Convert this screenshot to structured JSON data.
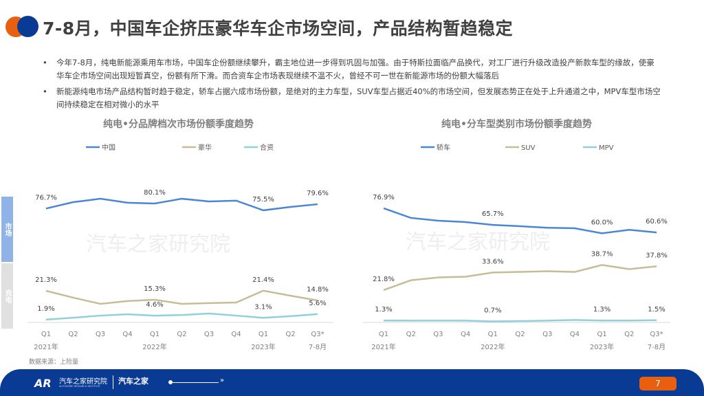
{
  "title": "7-8月，中国车企挤压豪华车企市场空间，产品结构暂趋稳定",
  "bullets": [
    "今年7-8月，纯电新能源乘用车市场，中国车企份额继续攀升，霸主地位进一步得到巩固与加强。由于特斯拉面临产品换代，对工厂进行升级改造投产新款车型的缘故，使豪华车企市场空间出现短暂真空，份额有所下滑。而合资车企市场表现继续不温不火，曾经不可一世在新能源市场的份额大幅落后",
    "新能源纯电市场产品结构暂时趋于稳定，轿车占据六成市场份额，是绝对的主力车型，SUV车型占据近40%的市场空间，但发展态势正在处于上升通道之中，MPV车型市场空间持续稳定在相对微小的水平"
  ],
  "side_bands": [
    "市场",
    "充电"
  ],
  "watermark": "汽车之家研究院",
  "source": "数据来源：上险量",
  "footer": {
    "brand": "汽车之家研究院",
    "brand_sub": "AUTOHOME RESEARCH INSTITUTE",
    "brand2": "汽车之家",
    "page": "7"
  },
  "colors": {
    "accent_orange": "#e8600f",
    "accent_blue": "#0a3b94"
  },
  "chart_data": [
    {
      "type": "line",
      "title": "纯电•分品牌档次市场份额季度趋势",
      "categories": [
        "Q1",
        "Q2",
        "Q3",
        "Q4",
        "Q1",
        "Q2",
        "Q3",
        "Q4",
        "Q1",
        "Q2",
        "Q3*"
      ],
      "year_labels": [
        "2021年",
        "",
        "",
        "",
        "2022年",
        "",
        "",
        "",
        "2023年",
        "",
        "7-8月"
      ],
      "legend": "top",
      "ylim": [
        0,
        100
      ],
      "series": [
        {
          "name": "中国",
          "color": "#4a86d8",
          "values": [
            76.7,
            81.0,
            83.3,
            80.6,
            80.1,
            83.3,
            81.5,
            82.0,
            75.5,
            77.8,
            79.6
          ],
          "labels": {
            "0": "76.7%",
            "4": "80.1%",
            "8": "75.5%",
            "10": "79.6%"
          }
        },
        {
          "name": "豪华",
          "color": "#c8bc98",
          "values": [
            21.3,
            16.7,
            12.5,
            14.4,
            15.3,
            12.5,
            13.0,
            13.4,
            21.4,
            18.0,
            14.8
          ],
          "labels": {
            "0": "21.3%",
            "4": "15.3%",
            "8": "21.4%",
            "10": "14.8%"
          }
        },
        {
          "name": "合资",
          "color": "#8fd0dc",
          "values": [
            1.9,
            3.2,
            4.6,
            5.5,
            4.6,
            5.0,
            6.0,
            4.6,
            3.1,
            4.2,
            5.6
          ],
          "labels": {
            "0": "1.9%",
            "4": "4.6%",
            "8": "3.1%",
            "10": "5.6%"
          }
        }
      ]
    },
    {
      "type": "line",
      "title": "纯电•分车型类别市场份额季度趋势",
      "categories": [
        "Q1",
        "Q2",
        "Q3",
        "Q4",
        "Q1",
        "Q2",
        "Q3",
        "Q4",
        "Q1",
        "Q2",
        "Q3*"
      ],
      "year_labels": [
        "2021年",
        "",
        "",
        "",
        "2022年",
        "",
        "",
        "",
        "2023年",
        "",
        "7-8月"
      ],
      "legend": "top",
      "ylim": [
        0,
        100
      ],
      "series": [
        {
          "name": "轿车",
          "color": "#4a86d8",
          "values": [
            76.9,
            70.4,
            68.5,
            67.6,
            65.7,
            64.8,
            63.8,
            63.4,
            60.0,
            62.4,
            60.6
          ],
          "labels": {
            "0": "76.9%",
            "4": "65.7%",
            "8": "60.0%",
            "10": "60.6%"
          }
        },
        {
          "name": "SUV",
          "color": "#c8bc98",
          "values": [
            21.8,
            28.4,
            30.3,
            30.8,
            33.6,
            34.0,
            34.5,
            34.0,
            38.7,
            35.9,
            37.8
          ],
          "labels": {
            "0": "21.8%",
            "4": "33.6%",
            "8": "38.7%",
            "10": "37.8%"
          }
        },
        {
          "name": "MPV",
          "color": "#8fd0dc",
          "values": [
            1.3,
            1.2,
            1.2,
            1.2,
            0.7,
            0.9,
            1.2,
            1.7,
            1.3,
            1.3,
            1.5
          ],
          "labels": {
            "0": "1.3%",
            "4": "0.7%",
            "8": "1.3%",
            "10": "1.5%"
          }
        }
      ]
    }
  ]
}
